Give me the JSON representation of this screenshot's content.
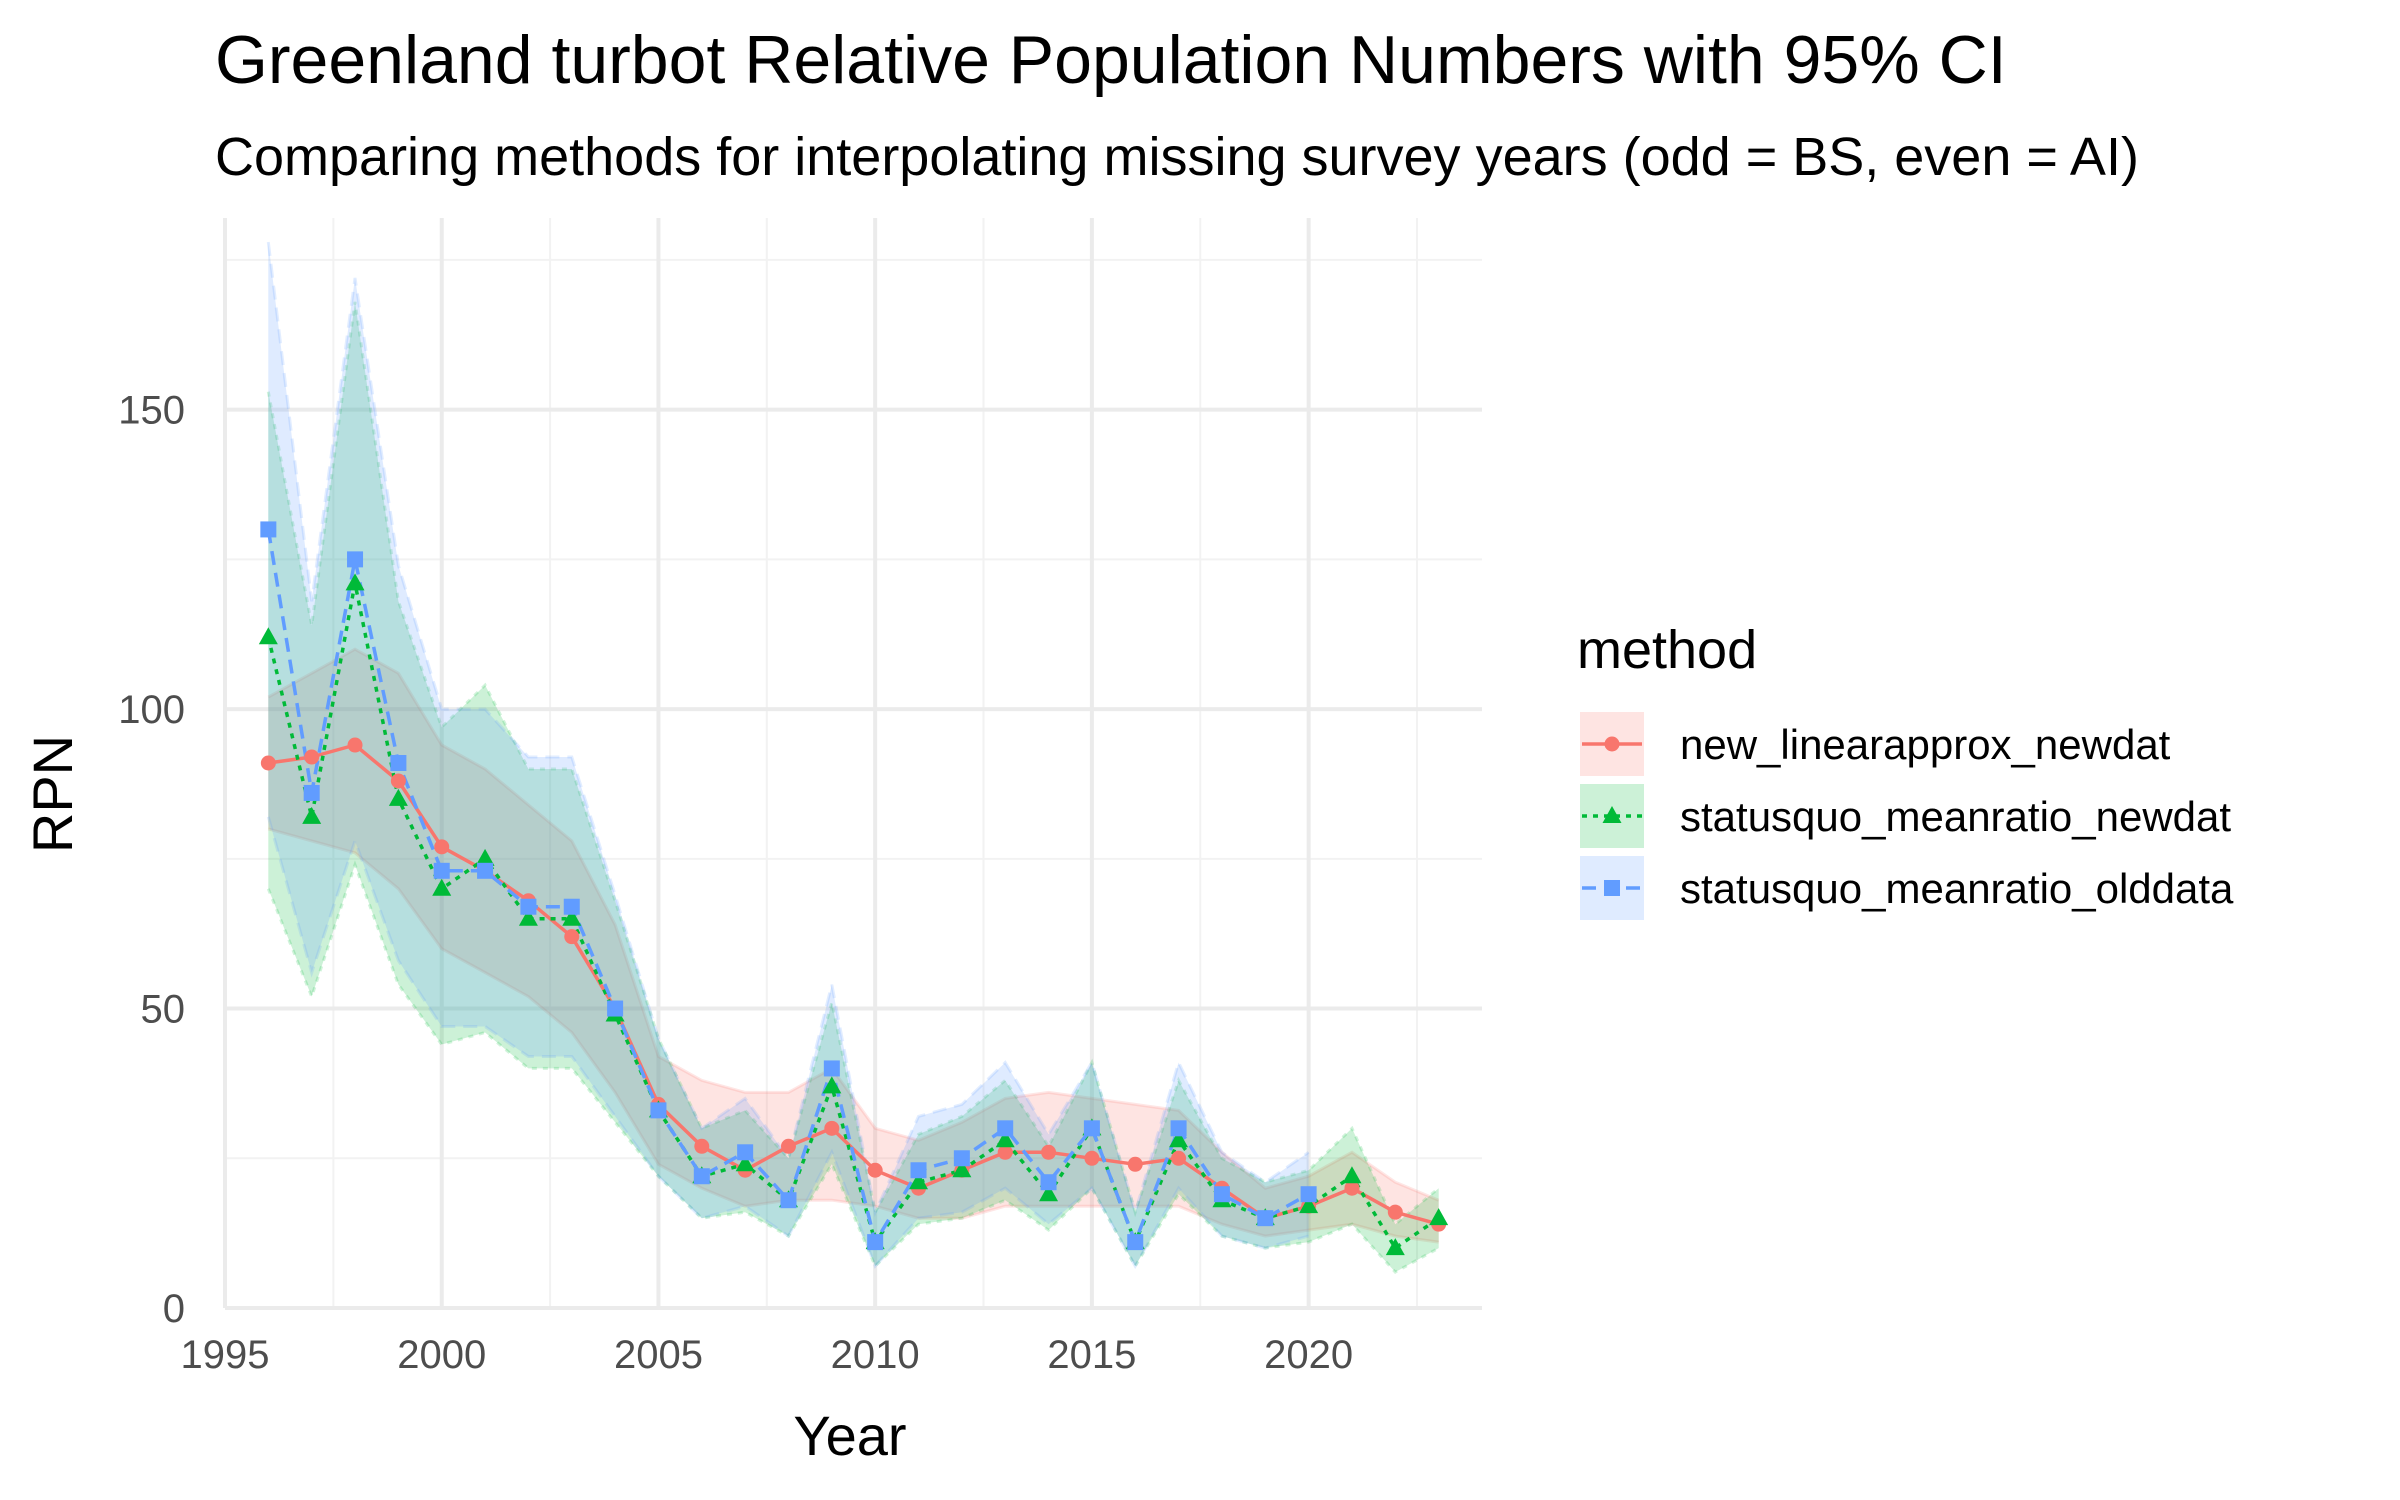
{
  "chart_data": {
    "type": "line",
    "title": "Greenland turbot Relative Population Numbers with 95% CI",
    "subtitle": "Comparing methods for interpolating missing survey years (odd = BS, even = AI)",
    "xlabel": "Year",
    "ylabel": "RPN",
    "xlim": [
      1995,
      2024
    ],
    "ylim": [
      0,
      182
    ],
    "x_ticks": [
      1995,
      2000,
      2005,
      2010,
      2015,
      2020
    ],
    "y_ticks": [
      0,
      50,
      100,
      150
    ],
    "grid": true,
    "legend_title": "method",
    "legend_position": "right",
    "series": [
      {
        "name": "new_linearapprox_newdat",
        "color": "#F8766D",
        "linetype": "solid",
        "marker": "circle",
        "x": [
          1996,
          1997,
          1998,
          1999,
          2000,
          2001,
          2002,
          2003,
          2004,
          2005,
          2006,
          2007,
          2008,
          2009,
          2010,
          2011,
          2012,
          2013,
          2014,
          2015,
          2016,
          2017,
          2018,
          2019,
          2020,
          2021,
          2022,
          2023
        ],
        "y": [
          91,
          92,
          94,
          88,
          77,
          73,
          68,
          62,
          50,
          34,
          27,
          23,
          27,
          30,
          23,
          20,
          23,
          26,
          26,
          25,
          24,
          25,
          20,
          15,
          17,
          20,
          16,
          14
        ],
        "lower": [
          80,
          78,
          76,
          70,
          60,
          56,
          52,
          46,
          36,
          24,
          20,
          17,
          18,
          18,
          17,
          15,
          15,
          17,
          17,
          17,
          17,
          17,
          14,
          12,
          13,
          14,
          12,
          11
        ],
        "upper": [
          102,
          106,
          110,
          106,
          94,
          90,
          84,
          78,
          64,
          42,
          38,
          36,
          36,
          40,
          30,
          28,
          31,
          35,
          36,
          35,
          34,
          33,
          26,
          20,
          22,
          26,
          21,
          18
        ]
      },
      {
        "name": "statusquo_meanratio_newdat",
        "color": "#00BA38",
        "linetype": "dotted",
        "marker": "triangle",
        "x": [
          1996,
          1997,
          1998,
          1999,
          2000,
          2001,
          2002,
          2003,
          2004,
          2005,
          2006,
          2007,
          2008,
          2009,
          2010,
          2011,
          2012,
          2013,
          2014,
          2015,
          2016,
          2017,
          2018,
          2019,
          2020,
          2021,
          2022,
          2023
        ],
        "y": [
          112,
          82,
          121,
          85,
          70,
          75,
          65,
          65,
          49,
          33,
          22,
          24,
          18,
          37,
          11,
          21,
          23,
          28,
          19,
          30,
          11,
          28,
          18,
          15,
          17,
          22,
          10,
          15
        ],
        "lower": [
          70,
          52,
          74,
          54,
          44,
          46,
          40,
          40,
          31,
          22,
          15,
          16,
          12,
          24,
          7,
          14,
          15,
          18,
          13,
          20,
          7,
          19,
          12,
          10,
          11,
          14,
          6,
          10
        ],
        "upper": [
          153,
          114,
          168,
          118,
          97,
          104,
          90,
          90,
          68,
          45,
          30,
          33,
          25,
          51,
          16,
          29,
          32,
          38,
          27,
          41,
          16,
          38,
          25,
          21,
          23,
          30,
          14,
          20
        ]
      },
      {
        "name": "statusquo_meanratio_olddata",
        "color": "#619CFF",
        "linetype": "dashed",
        "marker": "square",
        "x": [
          1996,
          1997,
          1998,
          1999,
          2000,
          2001,
          2002,
          2003,
          2004,
          2005,
          2006,
          2007,
          2008,
          2009,
          2010,
          2011,
          2012,
          2013,
          2014,
          2015,
          2016,
          2017,
          2018,
          2019,
          2020
        ],
        "y": [
          130,
          86,
          125,
          91,
          73,
          73,
          67,
          67,
          50,
          33,
          22,
          26,
          18,
          40,
          11,
          23,
          25,
          30,
          21,
          30,
          11,
          30,
          19,
          15,
          19
        ],
        "lower": [
          82,
          56,
          78,
          58,
          47,
          47,
          42,
          42,
          32,
          22,
          15,
          17,
          12,
          26,
          7,
          15,
          16,
          20,
          14,
          20,
          7,
          20,
          12,
          10,
          12
        ],
        "upper": [
          178,
          118,
          172,
          124,
          100,
          100,
          92,
          92,
          69,
          45,
          30,
          35,
          25,
          54,
          16,
          32,
          34,
          41,
          29,
          41,
          16,
          41,
          26,
          21,
          26
        ]
      }
    ]
  }
}
